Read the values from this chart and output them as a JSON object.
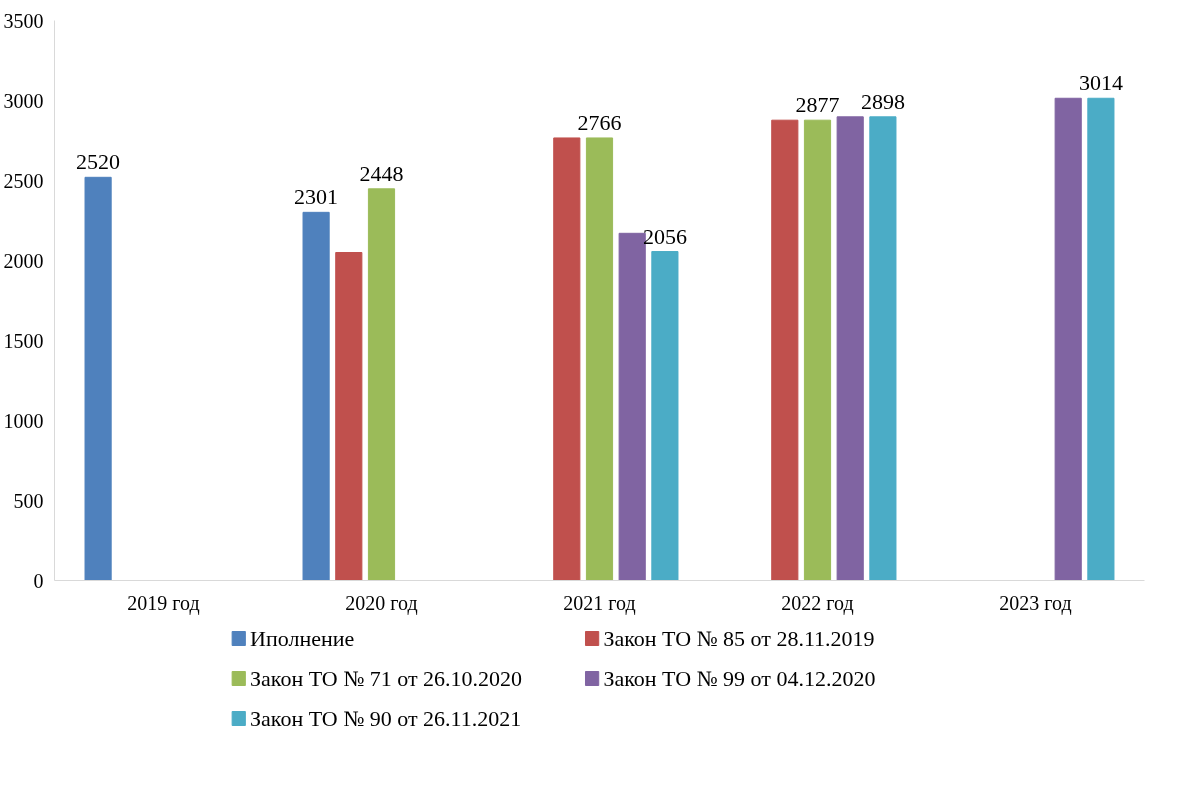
{
  "chart_data": {
    "type": "bar",
    "categories": [
      "2019 год",
      "2020 год",
      "2021 год",
      "2022 год",
      "2023 год"
    ],
    "series": [
      {
        "name": "Иполнение",
        "color": "#4f81bd",
        "values": [
          2520,
          2301,
          null,
          null,
          null
        ],
        "value_labels": [
          "2520",
          "2301",
          null,
          null,
          null
        ]
      },
      {
        "name": "Закон ТО № 85 от 28.11.2019",
        "color": "#c0504d",
        "values": [
          null,
          2050,
          2766,
          2877,
          null
        ],
        "value_labels": [
          null,
          null,
          null,
          null,
          null
        ]
      },
      {
        "name": "Закон ТО № 71 от 26.10.2020",
        "color": "#9bbb59",
        "values": [
          null,
          2448,
          2766,
          2877,
          null
        ],
        "value_labels": [
          null,
          "2448",
          "2766",
          "2877",
          null
        ]
      },
      {
        "name": "Закон ТО № 99 от 04.12.2020",
        "color": "#8064a2",
        "values": [
          null,
          null,
          2170,
          2898,
          3014
        ],
        "value_labels": [
          null,
          null,
          null,
          null,
          null
        ]
      },
      {
        "name": "Закон ТО № 90 от 26.11.2021",
        "color": "#4bacc6",
        "values": [
          null,
          null,
          2056,
          2898,
          3014
        ],
        "value_labels": [
          null,
          null,
          "2056",
          "2898",
          "3014"
        ]
      }
    ],
    "ylim": [
      0,
      3500
    ],
    "yticks": [
      0,
      500,
      1000,
      1500,
      2000,
      2500,
      3000,
      3500
    ],
    "grid": false,
    "legend": "bottom"
  }
}
